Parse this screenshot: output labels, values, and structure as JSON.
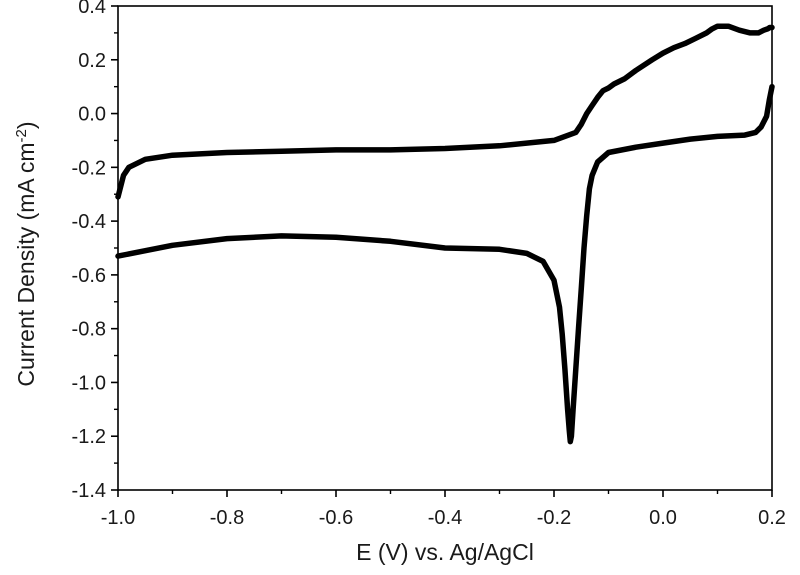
{
  "chart_data": {
    "type": "line",
    "title": "",
    "xlabel": "E (V) vs. Ag/AgCl",
    "ylabel": {
      "main": "Current Density (mA cm",
      "superscript": "-2",
      "close": ")"
    },
    "xlim": [
      -1.0,
      0.2
    ],
    "ylim": [
      -1.4,
      0.4
    ],
    "xticks": [
      -1.0,
      -0.8,
      -0.6,
      -0.4,
      -0.2,
      0.0,
      0.2
    ],
    "xtick_labels": [
      "-1.0",
      "-0.8",
      "-0.6",
      "-0.4",
      "-0.2",
      "0.0",
      "0.2"
    ],
    "yticks": [
      -1.4,
      -1.2,
      -1.0,
      -0.8,
      -0.6,
      -0.4,
      -0.2,
      0.0,
      0.2,
      0.4
    ],
    "ytick_labels": [
      "-1.4",
      "-1.2",
      "-1.0",
      "-0.8",
      "-0.6",
      "-0.4",
      "-0.2",
      "0.0",
      "0.2",
      "0.4"
    ],
    "grid": false,
    "legend": "none",
    "color": "#000000",
    "series": [
      {
        "x": [
          0.2,
          0.196,
          0.192,
          0.185,
          0.175,
          0.16,
          0.14,
          0.12,
          0.1,
          0.09,
          0.08,
          0.06,
          0.04,
          0.02,
          0.0,
          -0.02,
          -0.05,
          -0.07,
          -0.09,
          -0.1,
          -0.11,
          -0.12,
          -0.13,
          -0.14,
          -0.15,
          -0.16,
          -0.2,
          -0.3,
          -0.4,
          -0.5,
          -0.6,
          -0.7,
          -0.8,
          -0.9,
          -0.95,
          -0.98,
          -0.99,
          -1.0
        ],
        "y": [
          0.32,
          0.32,
          0.315,
          0.31,
          0.3,
          0.3,
          0.31,
          0.325,
          0.325,
          0.315,
          0.3,
          0.28,
          0.26,
          0.245,
          0.225,
          0.2,
          0.16,
          0.13,
          0.11,
          0.095,
          0.085,
          0.06,
          0.03,
          0.0,
          -0.04,
          -0.07,
          -0.1,
          -0.12,
          -0.13,
          -0.135,
          -0.135,
          -0.14,
          -0.145,
          -0.155,
          -0.17,
          -0.2,
          -0.23,
          -0.31
        ]
      },
      {
        "x": [
          -1.0,
          -0.95,
          -0.9,
          -0.8,
          -0.7,
          -0.6,
          -0.5,
          -0.4,
          -0.3,
          -0.25,
          -0.22,
          -0.2,
          -0.19,
          -0.185,
          -0.18,
          -0.175,
          -0.172,
          -0.17,
          -0.168,
          -0.165,
          -0.16,
          -0.155,
          -0.15,
          -0.145,
          -0.14,
          -0.135,
          -0.13,
          -0.12,
          -0.1,
          -0.05,
          0.0,
          0.05,
          0.1,
          0.15,
          0.17,
          0.18,
          0.19,
          0.195,
          0.2
        ],
        "y": [
          -0.53,
          -0.51,
          -0.49,
          -0.465,
          -0.455,
          -0.46,
          -0.475,
          -0.5,
          -0.505,
          -0.52,
          -0.55,
          -0.62,
          -0.72,
          -0.82,
          -0.95,
          -1.1,
          -1.18,
          -1.22,
          -1.2,
          -1.1,
          -0.95,
          -0.8,
          -0.65,
          -0.5,
          -0.38,
          -0.28,
          -0.23,
          -0.18,
          -0.145,
          -0.125,
          -0.11,
          -0.095,
          -0.085,
          -0.08,
          -0.07,
          -0.05,
          -0.01,
          0.05,
          0.1
        ]
      }
    ]
  }
}
